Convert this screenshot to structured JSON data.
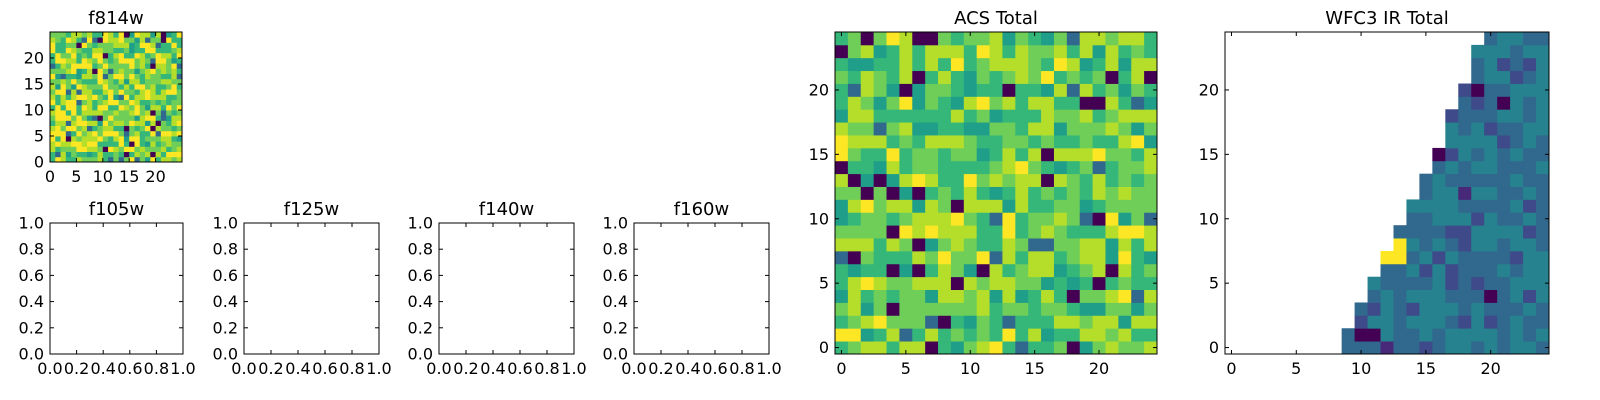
{
  "figure": {
    "background": "#ffffff"
  },
  "colormap": [
    "#440154",
    "#482878",
    "#3e4a89",
    "#31688e",
    "#26828e",
    "#1f9e89",
    "#35b779",
    "#6ece58",
    "#b5de2b",
    "#fde725"
  ],
  "chart_data": [
    {
      "id": "f814w",
      "type": "heatmap",
      "title": "f814w",
      "xlim": [
        0,
        25
      ],
      "ylim": [
        0,
        25
      ],
      "xticks": [
        "0",
        "5",
        "10",
        "15",
        "20"
      ],
      "yticks": [
        "0",
        "5",
        "10",
        "15",
        "20"
      ],
      "xtick_values": [
        0,
        5,
        10,
        15,
        20
      ],
      "ytick_values": [
        0,
        5,
        10,
        15,
        20
      ],
      "grid_size": [
        25,
        25
      ],
      "pattern": "noise",
      "level": 0.78,
      "spread": 0.2,
      "seed": 11
    },
    {
      "id": "f105w",
      "type": "empty",
      "title": "f105w",
      "xlim": [
        0,
        1
      ],
      "ylim": [
        0,
        1
      ],
      "xticks": [
        "0.0",
        "0.2",
        "0.4",
        "0.6",
        "0.8",
        "1.0"
      ],
      "yticks": [
        "0.0",
        "0.2",
        "0.4",
        "0.6",
        "0.8",
        "1.0"
      ],
      "xtick_values": [
        0,
        0.2,
        0.4,
        0.6,
        0.8,
        1.0
      ],
      "ytick_values": [
        0,
        0.2,
        0.4,
        0.6,
        0.8,
        1.0
      ]
    },
    {
      "id": "f125w",
      "type": "empty",
      "title": "f125w",
      "xlim": [
        0,
        1
      ],
      "ylim": [
        0,
        1
      ],
      "xticks": [
        "0.0",
        "0.2",
        "0.4",
        "0.6",
        "0.8",
        "1.0"
      ],
      "yticks": [
        "0.0",
        "0.2",
        "0.4",
        "0.6",
        "0.8",
        "1.0"
      ],
      "xtick_values": [
        0,
        0.2,
        0.4,
        0.6,
        0.8,
        1.0
      ],
      "ytick_values": [
        0,
        0.2,
        0.4,
        0.6,
        0.8,
        1.0
      ]
    },
    {
      "id": "f140w",
      "type": "empty",
      "title": "f140w",
      "xlim": [
        0,
        1
      ],
      "ylim": [
        0,
        1
      ],
      "xticks": [
        "0.0",
        "0.2",
        "0.4",
        "0.6",
        "0.8",
        "1.0"
      ],
      "yticks": [
        "0.0",
        "0.2",
        "0.4",
        "0.6",
        "0.8",
        "1.0"
      ],
      "xtick_values": [
        0,
        0.2,
        0.4,
        0.6,
        0.8,
        1.0
      ],
      "ytick_values": [
        0,
        0.2,
        0.4,
        0.6,
        0.8,
        1.0
      ]
    },
    {
      "id": "f160w",
      "type": "empty",
      "title": "f160w",
      "xlim": [
        0,
        1
      ],
      "ylim": [
        0,
        1
      ],
      "xticks": [
        "0.0",
        "0.2",
        "0.4",
        "0.6",
        "0.8",
        "1.0"
      ],
      "yticks": [
        "0.0",
        "0.2",
        "0.4",
        "0.6",
        "0.8",
        "1.0"
      ],
      "xtick_values": [
        0,
        0.2,
        0.4,
        0.6,
        0.8,
        1.0
      ],
      "ytick_values": [
        0,
        0.2,
        0.4,
        0.6,
        0.8,
        1.0
      ]
    },
    {
      "id": "acs-total",
      "type": "heatmap",
      "title": "ACS Total",
      "xlim": [
        -0.5,
        24.5
      ],
      "ylim": [
        -0.5,
        24.5
      ],
      "xticks": [
        "0",
        "5",
        "10",
        "15",
        "20"
      ],
      "yticks": [
        "0",
        "5",
        "10",
        "15",
        "20"
      ],
      "xtick_values": [
        0,
        5,
        10,
        15,
        20
      ],
      "ytick_values": [
        0,
        5,
        10,
        15,
        20
      ],
      "grid_size": [
        25,
        25
      ],
      "pattern": "noise",
      "level": 0.73,
      "spread": 0.17,
      "seed": 29
    },
    {
      "id": "wfc3-ir-total",
      "type": "heatmap",
      "title": "WFC3 IR Total",
      "xlim": [
        -0.5,
        24.5
      ],
      "ylim": [
        -0.5,
        24.5
      ],
      "xticks": [
        "0",
        "5",
        "10",
        "15",
        "20"
      ],
      "yticks": [
        "0",
        "5",
        "10",
        "15",
        "20"
      ],
      "xtick_values": [
        0,
        5,
        10,
        15,
        20
      ],
      "ytick_values": [
        0,
        5,
        10,
        15,
        20
      ],
      "grid_size": [
        25,
        25
      ],
      "pattern": "wedge",
      "level": 0.4,
      "spread": 0.08,
      "seed": 53,
      "first_filled_column": [
        9,
        9,
        10,
        10,
        11,
        11,
        12,
        12,
        13,
        13,
        14,
        14,
        15,
        15,
        16,
        16,
        17,
        17,
        17,
        18,
        18,
        19,
        19,
        19,
        20
      ],
      "hot_cells": [
        [
          12,
          8,
          0.97
        ],
        [
          13,
          8,
          0.97
        ],
        [
          12,
          7,
          0.97
        ],
        [
          13,
          7,
          0.97
        ],
        [
          11,
          7,
          0.62
        ],
        [
          10,
          6,
          0.62
        ],
        [
          10,
          1,
          0.05
        ],
        [
          11,
          1,
          0.05
        ],
        [
          12,
          0,
          0.12
        ],
        [
          20,
          4,
          0.05
        ],
        [
          21,
          19,
          0.05
        ],
        [
          19,
          20,
          0.05
        ],
        [
          16,
          15,
          0.08
        ],
        [
          18,
          12,
          0.1
        ]
      ]
    }
  ]
}
